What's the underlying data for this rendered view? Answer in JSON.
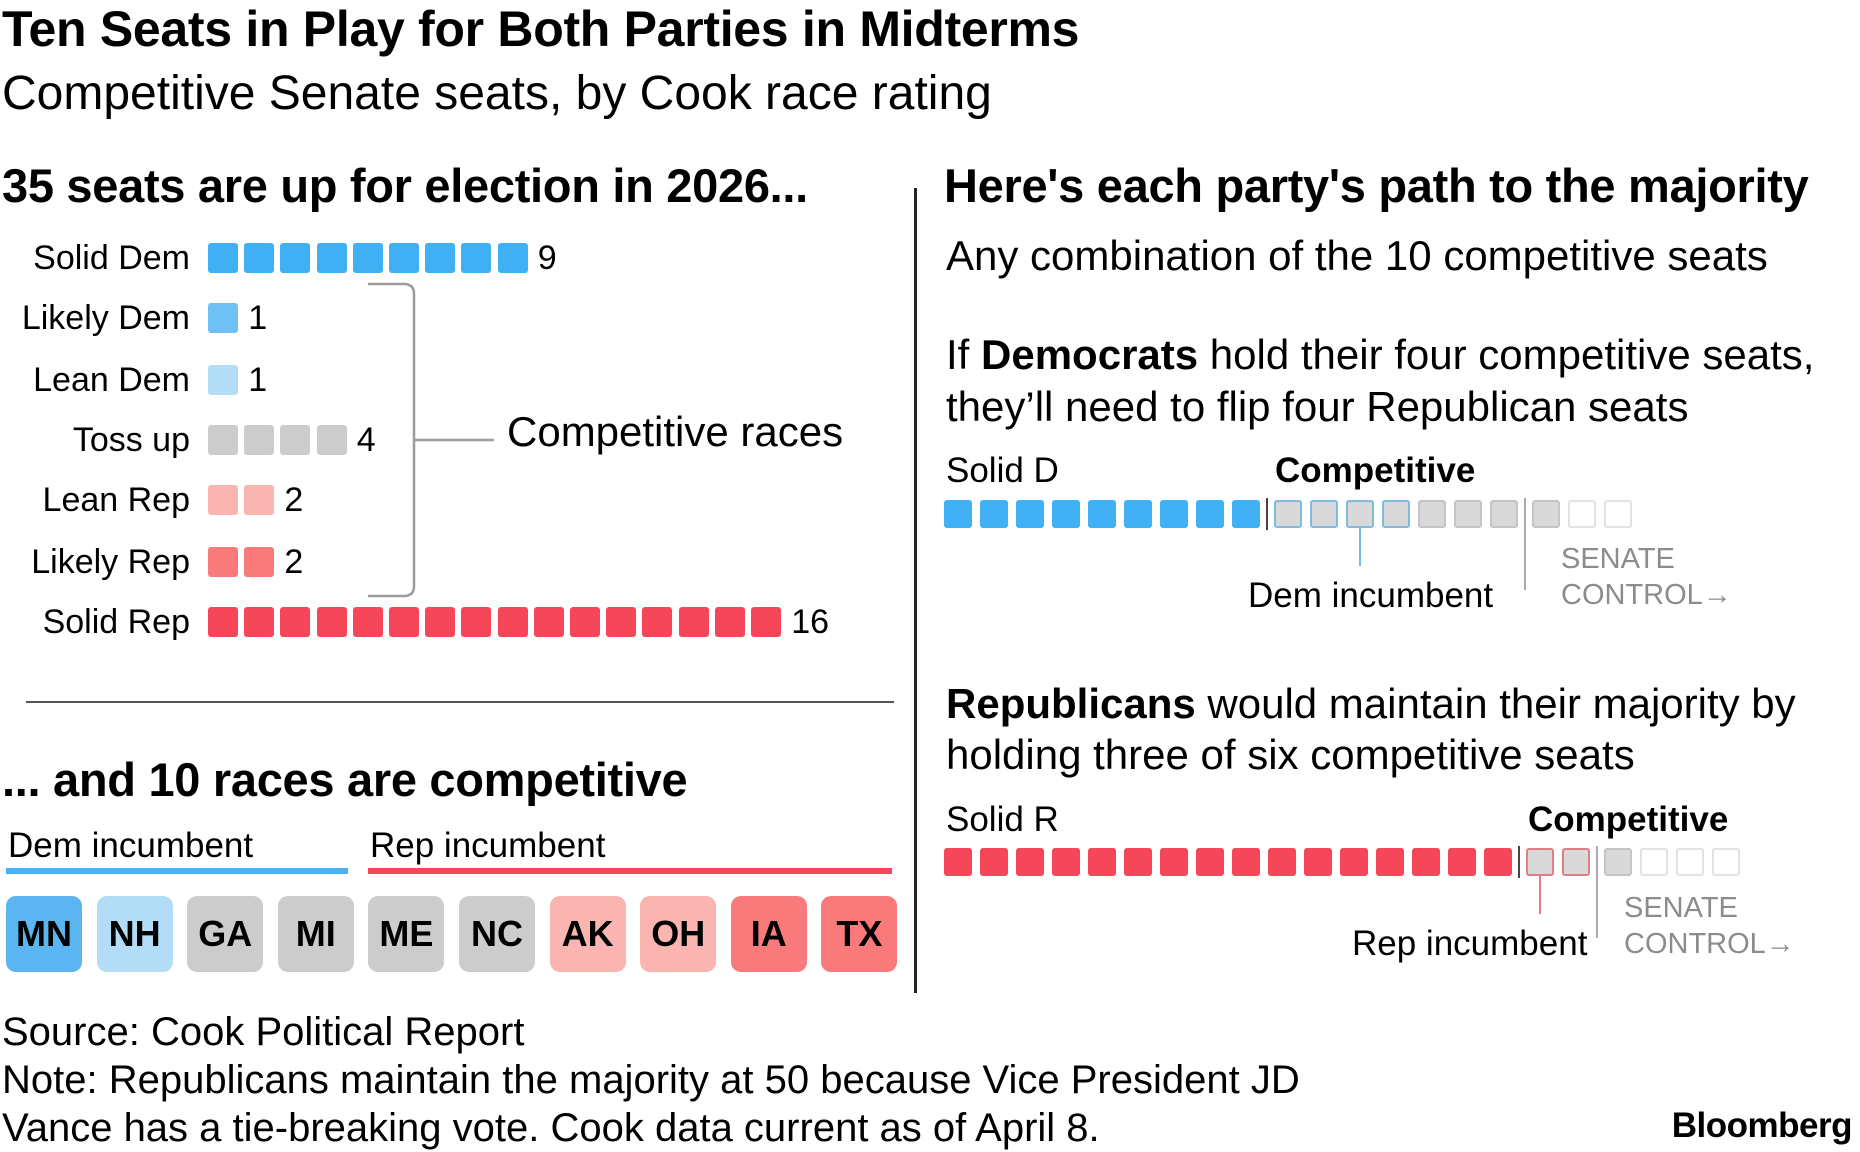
{
  "title": "Ten Seats in Play for Both Parties in Midterms",
  "subtitle": "Competitive Senate seats, by Cook race rating",
  "left_heading": "35 seats are up for election in 2026...",
  "competitive_label": "Competitive races",
  "lower_heading": "... and 10 races are competitive",
  "dem_incumbent_label": "Dem incumbent",
  "rep_incumbent_label": "Rep incumbent",
  "states": [
    {
      "abbr": "MN",
      "rating": "Likely Dem",
      "color": "#5bb5f0"
    },
    {
      "abbr": "NH",
      "rating": "Lean Dem",
      "color": "#b3dcf7"
    },
    {
      "abbr": "GA",
      "rating": "Toss up",
      "color": "#cccccc"
    },
    {
      "abbr": "MI",
      "rating": "Toss up",
      "color": "#cccccc"
    },
    {
      "abbr": "ME",
      "rating": "Toss up",
      "color": "#cccccc"
    },
    {
      "abbr": "NC",
      "rating": "Toss up",
      "color": "#cccccc"
    },
    {
      "abbr": "AK",
      "rating": "Lean Rep",
      "color": "#fab5b0"
    },
    {
      "abbr": "OH",
      "rating": "Lean Rep",
      "color": "#fab5b0"
    },
    {
      "abbr": "IA",
      "rating": "Likely Rep",
      "color": "#f97a7a"
    },
    {
      "abbr": "TX",
      "rating": "Likely Rep",
      "color": "#f97a7a"
    }
  ],
  "right_heading": "Here's each party's path to the majority",
  "right_sub": "Any combination of the 10 competitive seats",
  "dem_path": {
    "line1_pre": "If ",
    "line1_bold": "Democrats",
    "line1_post": " hold their four competitive seats,",
    "line2": "they’ll need to flip four Republican seats",
    "solid_label": "Solid D",
    "competitive_label": "Competitive",
    "incumbent_label": "Dem incumbent",
    "senate_line1": "SENATE",
    "senate_line2": "CONTROL",
    "solid_seats": 9,
    "incumbent_competitive": 4,
    "other_competitive": 3,
    "needed_after_control": 3
  },
  "rep_path": {
    "line1_bold": "Republicans",
    "line1_post": " would maintain their majority by",
    "line2": "holding three of six competitive seats",
    "solid_label": "Solid R",
    "competitive_label": "Competitive",
    "incumbent_label": "Rep incumbent",
    "senate_line1": "SENATE",
    "senate_line2": "CONTROL",
    "solid_seats": 16,
    "incumbent_competitive": 2,
    "after_control": 4
  },
  "source": "Source: Cook Political Report",
  "note_line1": "Note: Republicans maintain the majority at 50 because Vice President JD",
  "note_line2": "Vance has a tie-breaking vote. Cook data current as of April 8.",
  "brand": "Bloomberg",
  "colors": {
    "solid_dem": "#3fb0f3",
    "likely_dem": "#6fc1f5",
    "lean_dem": "#b3dcf7",
    "toss_up": "#cccccc",
    "lean_rep": "#fab5b0",
    "likely_rep": "#f97a7a",
    "solid_rep": "#f6475a"
  },
  "chart_data": {
    "type": "bar",
    "title": "35 seats are up for election in 2026...",
    "categories": [
      "Solid Dem",
      "Likely Dem",
      "Lean Dem",
      "Toss up",
      "Lean Rep",
      "Likely Rep",
      "Solid Rep"
    ],
    "values": [
      9,
      1,
      1,
      4,
      2,
      2,
      16
    ],
    "unit": "seats (one square per seat)",
    "xlabel": "",
    "ylabel": ""
  }
}
